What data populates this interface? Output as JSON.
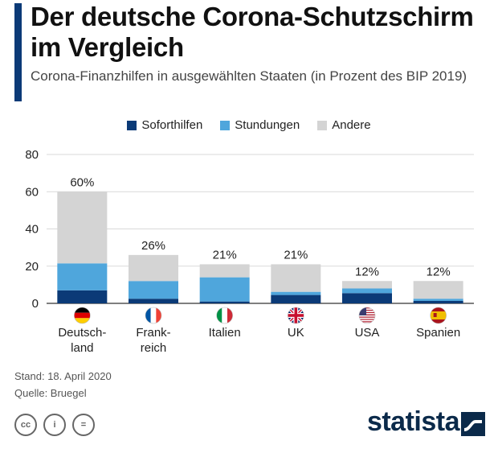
{
  "header": {
    "title": "Der deutsche Corona-Schutzschirm im Vergleich",
    "subtitle": "Corona-Finanzhilfen in ausgewählten Staaten (in Prozent des BIP 2019)"
  },
  "colors": {
    "accent": "#0b3a77",
    "soforthilfen": "#0b3a77",
    "stundungen": "#4fa6dc",
    "andere": "#d4d4d4"
  },
  "chart_data": {
    "type": "bar",
    "stacked": true,
    "categories": [
      "Deutsch-land",
      "Frank-reich",
      "Italien",
      "UK",
      "USA",
      "Spanien"
    ],
    "category_lines": [
      [
        "Deutsch-",
        "land"
      ],
      [
        "Frank-",
        "reich"
      ],
      [
        "Italien"
      ],
      [
        "UK"
      ],
      [
        "USA"
      ],
      [
        "Spanien"
      ]
    ],
    "series": [
      {
        "name": "Soforthilfen",
        "values": [
          7,
          2.5,
          1,
          4.5,
          5.5,
          1.3
        ]
      },
      {
        "name": "Stundungen",
        "values": [
          14.5,
          9.5,
          13,
          1.7,
          2.5,
          1.2
        ]
      },
      {
        "name": "Andere",
        "values": [
          38.5,
          14,
          7,
          14.8,
          4,
          9.5
        ]
      }
    ],
    "total_labels": [
      "60%",
      "26%",
      "21%",
      "21%",
      "12%",
      "12%"
    ],
    "flags": [
      "germany-flag",
      "france-flag",
      "italy-flag",
      "uk-flag",
      "usa-flag",
      "spain-flag"
    ],
    "ylim": [
      0,
      80
    ],
    "yticks": [
      0,
      20,
      40,
      60,
      80
    ],
    "grid": true,
    "legend_position": "top"
  },
  "footer": {
    "stand": "Stand: 18. April 2020",
    "quelle": "Quelle: Bruegel",
    "brand": "statista",
    "license_icons": [
      "cc-icon",
      "by-icon",
      "nd-icon"
    ],
    "license_glyphs": [
      "cc",
      "i",
      "="
    ]
  }
}
